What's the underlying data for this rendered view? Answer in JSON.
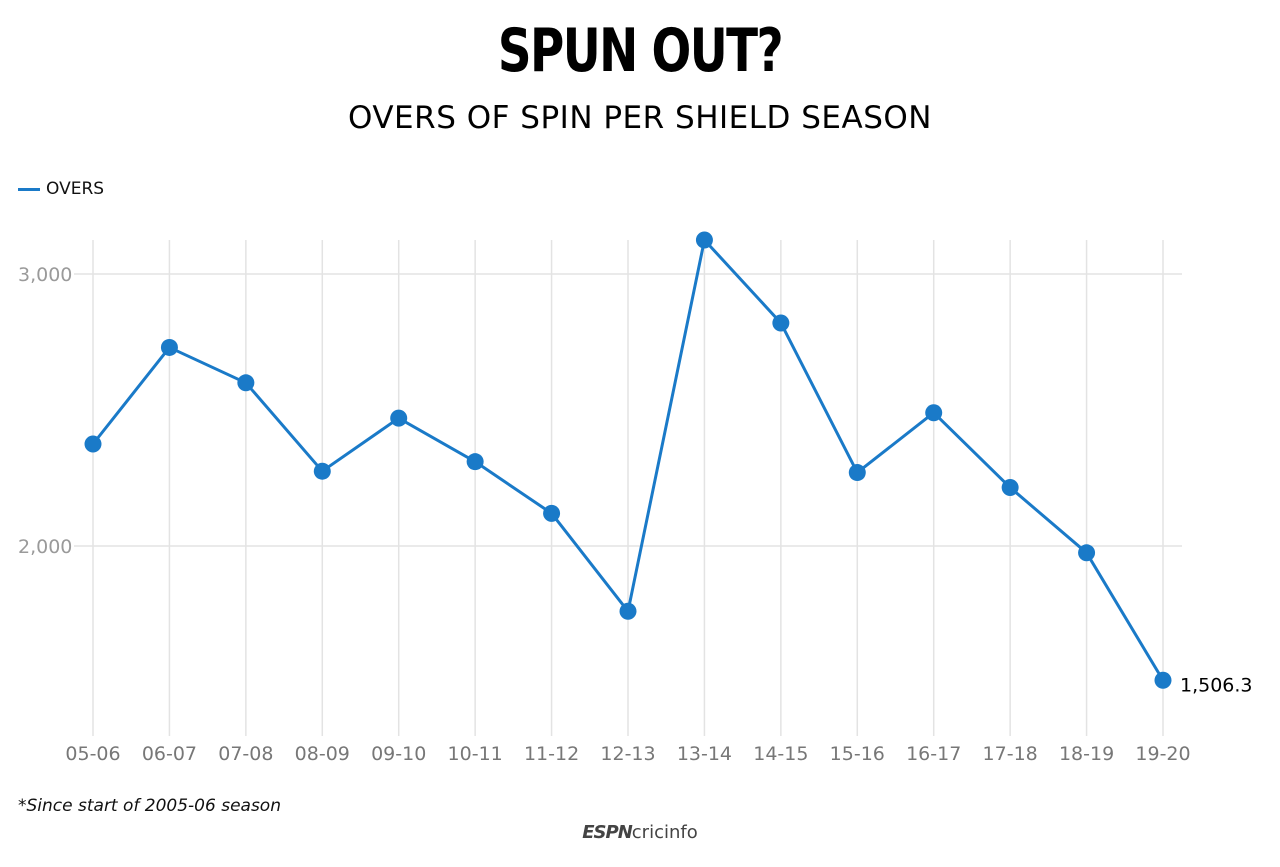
{
  "chart_data": {
    "type": "line",
    "title": "SPUN OUT?",
    "subtitle": "OVERS OF SPIN PER SHIELD SEASON",
    "categories": [
      "05-06",
      "06-07",
      "07-08",
      "08-09",
      "09-10",
      "10-11",
      "11-12",
      "12-13",
      "13-14",
      "14-15",
      "15-16",
      "16-17",
      "17-18",
      "18-19",
      "19-20"
    ],
    "series": [
      {
        "name": "OVERS",
        "values": [
          2375,
          2730,
          2600,
          2275,
          2470,
          2310,
          2120,
          1760,
          3125,
          2820,
          2270,
          2490,
          2215,
          1975,
          1506.3
        ]
      }
    ],
    "end_label": "1,506.3",
    "yticks": [
      {
        "value": 2000,
        "label": "2,000"
      },
      {
        "value": 3000,
        "label": "3,000"
      }
    ],
    "ylim": [
      1480,
      3250
    ],
    "grid": true,
    "legend_position": "top-left",
    "line_color": "#1a7ac8",
    "grid_color": "#e3e3e3",
    "footnote": "*Since start of 2005-06 season"
  },
  "branding": {
    "logo_part1": "ESPN",
    "logo_part2": "cricinfo"
  }
}
